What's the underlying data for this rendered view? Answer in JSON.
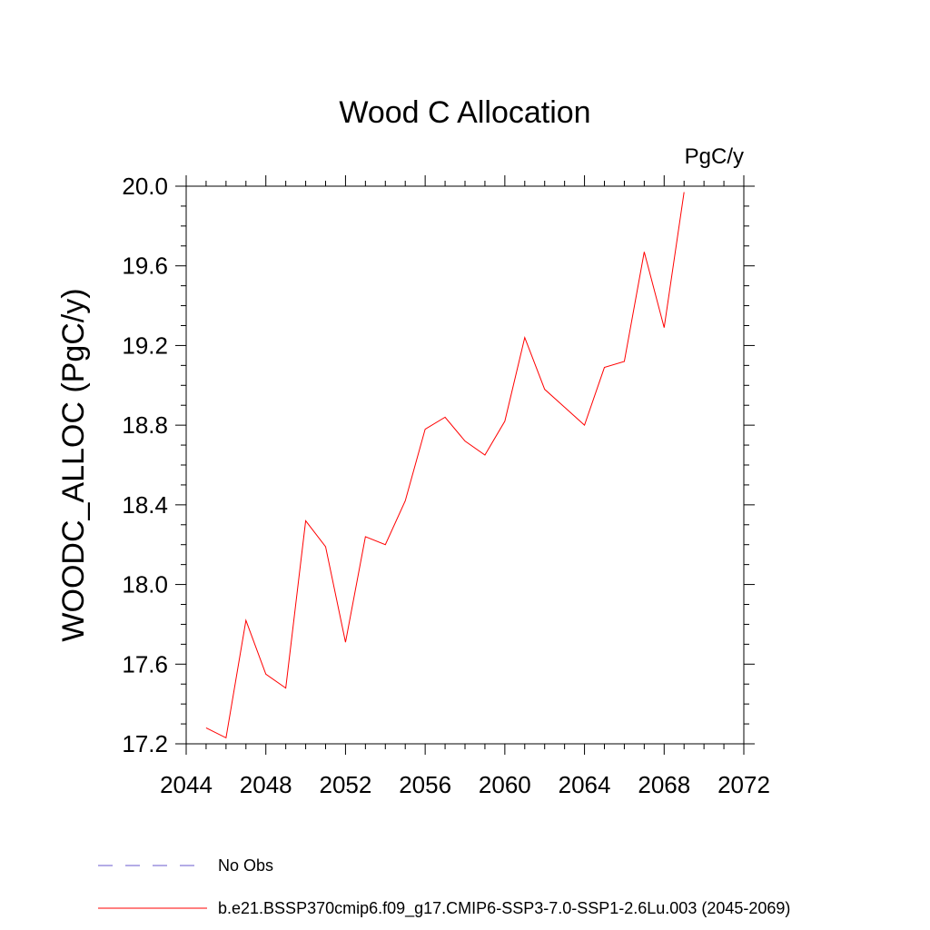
{
  "chart_data": {
    "type": "line",
    "title": "Wood C Allocation",
    "units_label": "PgC/y",
    "ylabel": "WOODC_ALLOC  (PgC/y)",
    "xlabel": "",
    "xlim": [
      2044,
      2072
    ],
    "ylim": [
      17.2,
      20.0
    ],
    "x_ticks": [
      2044,
      2048,
      2052,
      2056,
      2060,
      2064,
      2068,
      2072
    ],
    "x_tick_labels": [
      "2044",
      "2048",
      "2052",
      "2056",
      "2060",
      "2064",
      "2068",
      "2072"
    ],
    "y_ticks": [
      17.2,
      17.6,
      18.0,
      18.4,
      18.8,
      19.2,
      19.6,
      20.0
    ],
    "y_tick_labels": [
      "17.2",
      "17.6",
      "18.0",
      "18.4",
      "18.8",
      "19.2",
      "19.6",
      "20.0"
    ],
    "grid": false,
    "legend_position": "bottom-left",
    "series": [
      {
        "name": "b.e21.BSSP370cmip6.f09_g17.CMIP6-SSP3-7.0-SSP1-2.6Lu.003 (2045-2069)",
        "color": "#ff0000",
        "style": "solid",
        "x": [
          2045,
          2046,
          2047,
          2048,
          2049,
          2050,
          2051,
          2052,
          2053,
          2054,
          2055,
          2056,
          2057,
          2058,
          2059,
          2060,
          2061,
          2062,
          2063,
          2064,
          2065,
          2066,
          2067,
          2068,
          2069
        ],
        "y": [
          17.28,
          17.23,
          17.82,
          17.55,
          17.48,
          18.32,
          18.19,
          17.71,
          18.24,
          18.2,
          18.42,
          18.78,
          18.84,
          18.72,
          18.65,
          18.82,
          19.24,
          18.98,
          18.89,
          18.8,
          19.09,
          19.12,
          19.67,
          19.29,
          19.97
        ]
      }
    ],
    "legend": [
      {
        "label": "No Obs",
        "color": "#6a5acd",
        "style": "dashed"
      },
      {
        "label": "b.e21.BSSP370cmip6.f09_g17.CMIP6-SSP3-7.0-SSP1-2.6Lu.003 (2045-2069)",
        "color": "#ff0000",
        "style": "solid"
      }
    ]
  }
}
